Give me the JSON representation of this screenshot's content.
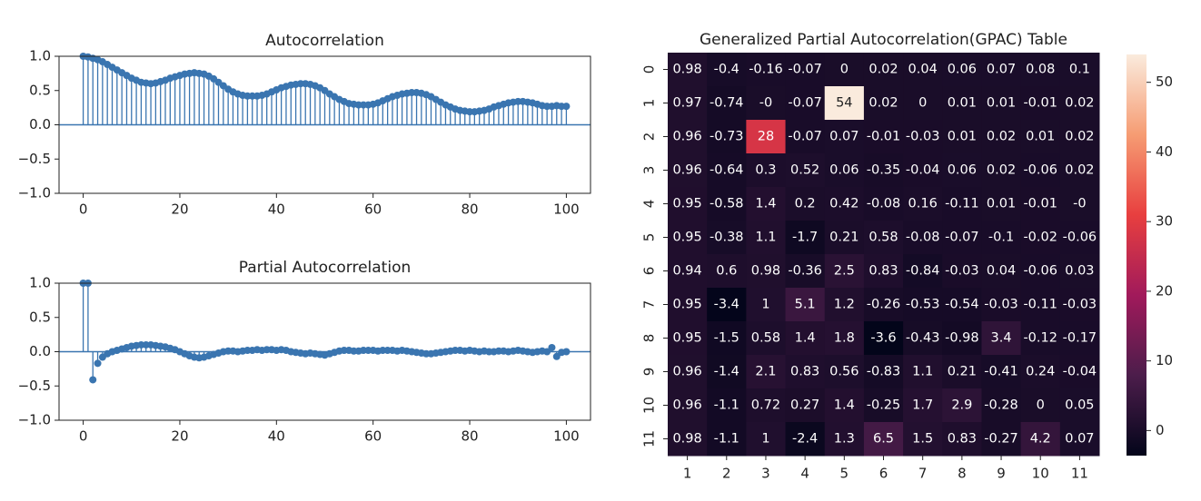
{
  "chart_data": [
    {
      "type": "stem",
      "title": "Autocorrelation",
      "color": "#3a75b0",
      "band_color": "#c5d8ec",
      "x": [
        0,
        1,
        2,
        3,
        4,
        5,
        6,
        7,
        8,
        9,
        10,
        11,
        12,
        13,
        14,
        15,
        16,
        17,
        18,
        19,
        20,
        21,
        22,
        23,
        24,
        25,
        26,
        27,
        28,
        29,
        30,
        31,
        32,
        33,
        34,
        35,
        36,
        37,
        38,
        39,
        40,
        41,
        42,
        43,
        44,
        45,
        46,
        47,
        48,
        49,
        50,
        51,
        52,
        53,
        54,
        55,
        56,
        57,
        58,
        59,
        60,
        61,
        62,
        63,
        64,
        65,
        66,
        67,
        68,
        69,
        70,
        71,
        72,
        73,
        74,
        75,
        76,
        77,
        78,
        79,
        80,
        81,
        82,
        83,
        84,
        85,
        86,
        87,
        88,
        89,
        90,
        91,
        92,
        93,
        94,
        95,
        96,
        97,
        98,
        99,
        100
      ],
      "values": [
        1.0,
        0.99,
        0.97,
        0.95,
        0.92,
        0.88,
        0.84,
        0.8,
        0.76,
        0.72,
        0.68,
        0.65,
        0.62,
        0.61,
        0.6,
        0.61,
        0.63,
        0.65,
        0.68,
        0.7,
        0.72,
        0.74,
        0.75,
        0.76,
        0.75,
        0.74,
        0.71,
        0.67,
        0.62,
        0.57,
        0.52,
        0.48,
        0.45,
        0.43,
        0.42,
        0.42,
        0.42,
        0.43,
        0.45,
        0.48,
        0.51,
        0.54,
        0.56,
        0.58,
        0.59,
        0.6,
        0.6,
        0.59,
        0.57,
        0.54,
        0.5,
        0.45,
        0.41,
        0.37,
        0.34,
        0.31,
        0.3,
        0.29,
        0.29,
        0.29,
        0.3,
        0.32,
        0.35,
        0.38,
        0.41,
        0.43,
        0.45,
        0.46,
        0.47,
        0.47,
        0.46,
        0.44,
        0.41,
        0.37,
        0.33,
        0.29,
        0.26,
        0.23,
        0.21,
        0.2,
        0.19,
        0.19,
        0.2,
        0.21,
        0.23,
        0.26,
        0.28,
        0.3,
        0.32,
        0.33,
        0.34,
        0.34,
        0.33,
        0.32,
        0.3,
        0.28,
        0.27,
        0.27,
        0.28,
        0.27,
        0.27
      ],
      "xlim": [
        -5,
        105
      ],
      "ylim": [
        -1.0,
        1.0
      ],
      "xticks": [
        0,
        20,
        40,
        60,
        80,
        100
      ],
      "yticks": [
        {
          "value": -1.0,
          "label": "−1.0"
        },
        {
          "value": -0.5,
          "label": "−0.5"
        },
        {
          "value": 0.0,
          "label": "0.0"
        },
        {
          "value": 0.5,
          "label": "0.5"
        },
        {
          "value": 1.0,
          "label": "1.0"
        }
      ]
    },
    {
      "type": "stem",
      "title": "Partial Autocorrelation",
      "color": "#3a75b0",
      "x": [
        0,
        1,
        2,
        3,
        4,
        5,
        6,
        7,
        8,
        9,
        10,
        11,
        12,
        13,
        14,
        15,
        16,
        17,
        18,
        19,
        20,
        21,
        22,
        23,
        24,
        25,
        26,
        27,
        28,
        29,
        30,
        31,
        32,
        33,
        34,
        35,
        36,
        37,
        38,
        39,
        40,
        41,
        42,
        43,
        44,
        45,
        46,
        47,
        48,
        49,
        50,
        51,
        52,
        53,
        54,
        55,
        56,
        57,
        58,
        59,
        60,
        61,
        62,
        63,
        64,
        65,
        66,
        67,
        68,
        69,
        70,
        71,
        72,
        73,
        74,
        75,
        76,
        77,
        78,
        79,
        80,
        81,
        82,
        83,
        84,
        85,
        86,
        87,
        88,
        89,
        90,
        91,
        92,
        93,
        94,
        95,
        96,
        97,
        98,
        99,
        100
      ],
      "values": [
        1.0,
        1.0,
        -0.41,
        -0.17,
        -0.08,
        -0.03,
        0.0,
        0.02,
        0.04,
        0.06,
        0.08,
        0.09,
        0.1,
        0.1,
        0.1,
        0.09,
        0.08,
        0.07,
        0.05,
        0.03,
        0.0,
        -0.03,
        -0.06,
        -0.08,
        -0.09,
        -0.08,
        -0.06,
        -0.04,
        -0.02,
        0.0,
        0.01,
        0.01,
        0.0,
        0.01,
        0.02,
        0.02,
        0.03,
        0.02,
        0.03,
        0.03,
        0.02,
        0.03,
        0.02,
        0.0,
        -0.01,
        -0.02,
        -0.03,
        -0.02,
        -0.03,
        -0.04,
        -0.05,
        -0.03,
        -0.01,
        0.01,
        0.02,
        0.02,
        0.01,
        0.01,
        0.02,
        0.02,
        0.02,
        0.01,
        0.02,
        0.02,
        0.02,
        0.01,
        0.02,
        0.01,
        0.0,
        -0.01,
        -0.02,
        -0.03,
        -0.03,
        -0.02,
        -0.01,
        0.0,
        0.01,
        0.02,
        0.02,
        0.01,
        0.02,
        0.01,
        0.0,
        0.01,
        0.0,
        0.0,
        0.01,
        0.01,
        0.0,
        0.01,
        0.02,
        0.01,
        0.0,
        -0.01,
        0.0,
        0.01,
        0.0,
        0.06,
        -0.07,
        -0.01,
        0.0
      ],
      "xlim": [
        -5,
        105
      ],
      "ylim": [
        -1.0,
        1.0
      ],
      "xticks": [
        0,
        20,
        40,
        60,
        80,
        100
      ],
      "yticks": [
        {
          "value": -1.0,
          "label": "−1.0"
        },
        {
          "value": -0.5,
          "label": "−0.5"
        },
        {
          "value": 0.0,
          "label": "0.0"
        },
        {
          "value": 0.5,
          "label": "0.5"
        },
        {
          "value": 1.0,
          "label": "1.0"
        }
      ]
    },
    {
      "type": "heatmap",
      "title": "Generalized Partial Autocorrelation(GPAC) Table",
      "x_categories": [
        1,
        2,
        3,
        4,
        5,
        6,
        7,
        8,
        9,
        10,
        11
      ],
      "y_categories": [
        0,
        1,
        2,
        3,
        4,
        5,
        6,
        7,
        8,
        9,
        10,
        11
      ],
      "values": [
        [
          0.98,
          -0.4,
          -0.16,
          -0.07,
          0,
          0.02,
          0.04,
          0.06,
          0.07,
          0.08,
          0.1
        ],
        [
          0.97,
          -0.74,
          0,
          -0.07,
          54,
          0.02,
          0,
          0.01,
          0.01,
          -0.01,
          0.02
        ],
        [
          0.96,
          -0.73,
          28,
          -0.07,
          0.07,
          -0.01,
          -0.03,
          0.01,
          0.02,
          0.01,
          0.02
        ],
        [
          0.96,
          -0.64,
          0.3,
          0.52,
          0.06,
          -0.35,
          -0.04,
          0.06,
          0.02,
          -0.06,
          0.02
        ],
        [
          0.95,
          -0.58,
          1.4,
          0.2,
          0.42,
          -0.08,
          0.16,
          -0.11,
          0.01,
          -0.01,
          0
        ],
        [
          0.95,
          -0.38,
          1.1,
          -1.7,
          0.21,
          0.58,
          -0.08,
          -0.07,
          -0.1,
          -0.02,
          -0.06
        ],
        [
          0.94,
          0.6,
          0.98,
          -0.36,
          2.5,
          0.83,
          -0.84,
          -0.03,
          0.04,
          -0.06,
          0.03
        ],
        [
          0.95,
          -3.4,
          1,
          5.1,
          1.2,
          -0.26,
          -0.53,
          -0.54,
          -0.03,
          -0.11,
          -0.03
        ],
        [
          0.95,
          -1.5,
          0.58,
          1.4,
          1.8,
          -3.6,
          -0.43,
          -0.98,
          3.4,
          -0.12,
          -0.17
        ],
        [
          0.96,
          -1.4,
          2.1,
          0.83,
          0.56,
          -0.83,
          1.1,
          0.21,
          -0.41,
          0.24,
          -0.04
        ],
        [
          0.96,
          -1.1,
          0.72,
          0.27,
          1.4,
          -0.25,
          1.7,
          2.9,
          -0.28,
          0,
          0.05
        ],
        [
          0.98,
          -1.1,
          1,
          -2.4,
          1.3,
          6.5,
          1.5,
          0.83,
          -0.27,
          4.2,
          0.07
        ]
      ],
      "value_labels": [
        [
          "0.98",
          "-0.4",
          "-0.16",
          "-0.07",
          "0",
          "0.02",
          "0.04",
          "0.06",
          "0.07",
          "0.08",
          "0.1"
        ],
        [
          "0.97",
          "-0.74",
          "-0",
          "-0.07",
          "54",
          "0.02",
          "0",
          "0.01",
          "0.01",
          "-0.01",
          "0.02"
        ],
        [
          "0.96",
          "-0.73",
          "28",
          "-0.07",
          "0.07",
          "-0.01",
          "-0.03",
          "0.01",
          "0.02",
          "0.01",
          "0.02"
        ],
        [
          "0.96",
          "-0.64",
          "0.3",
          "0.52",
          "0.06",
          "-0.35",
          "-0.04",
          "0.06",
          "0.02",
          "-0.06",
          "0.02"
        ],
        [
          "0.95",
          "-0.58",
          "1.4",
          "0.2",
          "0.42",
          "-0.08",
          "0.16",
          "-0.11",
          "0.01",
          "-0.01",
          "-0"
        ],
        [
          "0.95",
          "-0.38",
          "1.1",
          "-1.7",
          "0.21",
          "0.58",
          "-0.08",
          "-0.07",
          "-0.1",
          "-0.02",
          "-0.06"
        ],
        [
          "0.94",
          "0.6",
          "0.98",
          "-0.36",
          "2.5",
          "0.83",
          "-0.84",
          "-0.03",
          "0.04",
          "-0.06",
          "0.03"
        ],
        [
          "0.95",
          "-3.4",
          "1",
          "5.1",
          "1.2",
          "-0.26",
          "-0.53",
          "-0.54",
          "-0.03",
          "-0.11",
          "-0.03"
        ],
        [
          "0.95",
          "-1.5",
          "0.58",
          "1.4",
          "1.8",
          "-3.6",
          "-0.43",
          "-0.98",
          "3.4",
          "-0.12",
          "-0.17"
        ],
        [
          "0.96",
          "-1.4",
          "2.1",
          "0.83",
          "0.56",
          "-0.83",
          "1.1",
          "0.21",
          "-0.41",
          "0.24",
          "-0.04"
        ],
        [
          "0.96",
          "-1.1",
          "0.72",
          "0.27",
          "1.4",
          "-0.25",
          "1.7",
          "2.9",
          "-0.28",
          "0",
          "0.05"
        ],
        [
          "0.98",
          "-1.1",
          "1",
          "-2.4",
          "1.3",
          "6.5",
          "1.5",
          "0.83",
          "-0.27",
          "4.2",
          "0.07"
        ]
      ],
      "zlim": [
        -3.6,
        54
      ],
      "zticks": [
        0,
        10,
        20,
        30,
        40,
        50
      ],
      "colormap": [
        "#03051a",
        "#4c1d4b",
        "#a11a5b",
        "#e83f3f",
        "#f69c73",
        "#faebdd"
      ]
    }
  ]
}
